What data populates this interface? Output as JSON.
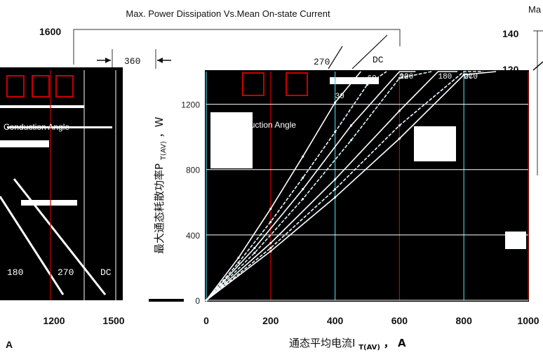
{
  "chart_data": {
    "type": "line",
    "title": "Max. Power Dissipation Vs.Mean On-state Current",
    "right_clipped_title": "Ma",
    "xlabel_cn": "通态平均电流I",
    "xlabel_sub": "T(AV)",
    "xlabel_unit": "，  A",
    "ylabel_cn": "最大通态耗散功率P",
    "ylabel_sub": "T(AV)",
    "ylabel_unit": "，W",
    "left_clipped_xlabel": "A",
    "background_yticks": [
      "1600"
    ],
    "right_panel_yticks": [
      "140",
      "120"
    ],
    "xlim": [
      0,
      1000
    ],
    "ylim": [
      0,
      1400
    ],
    "x_ticks": [
      "0",
      "200",
      "400",
      "600",
      "800",
      "1000"
    ],
    "y_ticks": [
      "0",
      "400",
      "800",
      "1200"
    ],
    "left_panel_xticks": [
      "1200",
      "1500"
    ],
    "left_panel_series_labels": [
      "180",
      "270",
      "DC"
    ],
    "inset_label": "Conduction Angle",
    "inset_label_left": "Conduction Angle",
    "series": [
      {
        "name": "30",
        "x": [
          0,
          100,
          200,
          300,
          400,
          480
        ],
        "y": [
          0,
          260,
          560,
          880,
          1210,
          1470
        ]
      },
      {
        "name": "60",
        "x": [
          0,
          100,
          200,
          300,
          400,
          500,
          560
        ],
        "y": [
          0,
          230,
          480,
          750,
          1030,
          1320,
          1490
        ]
      },
      {
        "name": "90",
        "x": [
          0,
          150,
          300,
          450,
          600,
          650
        ],
        "y": [
          0,
          320,
          680,
          1070,
          1480,
          1600
        ]
      },
      {
        "name": "120",
        "x": [
          0,
          150,
          300,
          450,
          600,
          700
        ],
        "y": [
          0,
          290,
          620,
          980,
          1360,
          1620
        ]
      },
      {
        "name": "180",
        "x": [
          0,
          200,
          400,
          600,
          720,
          780
        ],
        "y": [
          0,
          350,
          740,
          1160,
          1430,
          1560
        ]
      },
      {
        "name": "270",
        "x": [
          0,
          200,
          400,
          600,
          800,
          860
        ],
        "y": [
          0,
          320,
          680,
          1070,
          1490,
          1620
        ]
      },
      {
        "name": "DC",
        "x": [
          0,
          200,
          400,
          600,
          800,
          900
        ],
        "y": [
          0,
          300,
          630,
          990,
          1380,
          1580
        ]
      }
    ],
    "grid": true,
    "annotations": [
      "360",
      "270",
      "DC"
    ]
  }
}
